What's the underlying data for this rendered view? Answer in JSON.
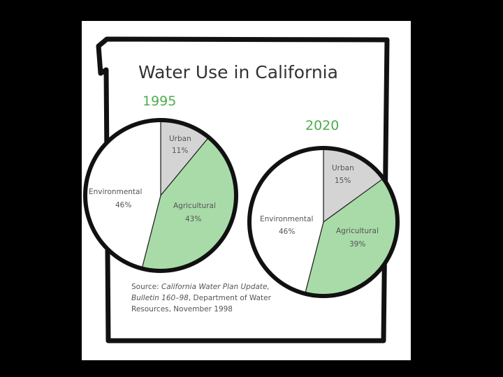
{
  "colors": {
    "background": "#000000",
    "paper": "#ffffff",
    "frame": "#111111",
    "title_text": "#333333",
    "year_text": "#4cae4c",
    "label_text": "#555555",
    "urban": "#d4d4d4",
    "agricultural": "#a9dba9",
    "environmental": "#ffffff"
  },
  "chart_data": [
    {
      "type": "pie",
      "title": "Water Use in California",
      "subtitle": "1995",
      "slices": [
        {
          "label": "Urban",
          "value": 11,
          "display": "11%",
          "color": "#d4d4d4"
        },
        {
          "label": "Agricultural",
          "value": 43,
          "display": "43%",
          "color": "#a9dba9"
        },
        {
          "label": "Environmental",
          "value": 46,
          "display": "46%",
          "color": "#ffffff"
        }
      ]
    },
    {
      "type": "pie",
      "subtitle": "2020",
      "slices": [
        {
          "label": "Urban",
          "value": 15,
          "display": "15%",
          "color": "#d4d4d4"
        },
        {
          "label": "Agricultural",
          "value": 39,
          "display": "39%",
          "color": "#a9dba9"
        },
        {
          "label": "Environmental",
          "value": 46,
          "display": "46%",
          "color": "#ffffff"
        }
      ]
    }
  ],
  "source": {
    "prefix": "Source: ",
    "italic": "California Water Plan Update, Bulletin 160–98",
    "suffix": ", Department of Water Resources, November 1998"
  }
}
